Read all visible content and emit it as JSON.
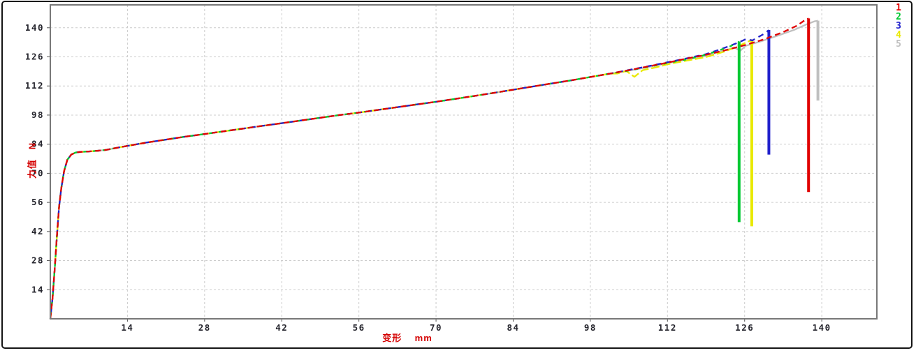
{
  "window": {
    "background": "#ffffff",
    "border_color": "#141414"
  },
  "chart_data": {
    "type": "line",
    "title": "",
    "xlabel": "变形    mm",
    "ylabel": "力值   N",
    "xlim": [
      0,
      150
    ],
    "ylim": [
      0,
      151
    ],
    "xticks": [
      14,
      28,
      42,
      56,
      70,
      84,
      98,
      112,
      126,
      140
    ],
    "yticks": [
      14,
      28,
      42,
      56,
      70,
      84,
      98,
      112,
      126,
      140
    ],
    "grid": "dashed",
    "legend_position": "outside-top-right",
    "colors": {
      "grid": "#cccccc",
      "plot_border": "#787878",
      "tick": "#555555",
      "tick_label": "#26262e",
      "axis_label": "#d40000",
      "plot_background": "#ffffff"
    },
    "legend": [
      {
        "label": "1",
        "color": "#e00000"
      },
      {
        "label": "2",
        "color": "#00c832"
      },
      {
        "label": "3",
        "color": "#2020cc"
      },
      {
        "label": "4",
        "color": "#e9e900"
      },
      {
        "label": "5",
        "color": "#bfbfbf"
      }
    ],
    "common_curve": [
      [
        0,
        0
      ],
      [
        0.4,
        10
      ],
      [
        0.8,
        24
      ],
      [
        1.2,
        40
      ],
      [
        1.6,
        54
      ],
      [
        2,
        63
      ],
      [
        2.5,
        71
      ],
      [
        3.1,
        76.5
      ],
      [
        3.8,
        79
      ],
      [
        4.6,
        80
      ],
      [
        5.5,
        80.3
      ],
      [
        7,
        80.5
      ],
      [
        8.5,
        80.8
      ],
      [
        10,
        81.2
      ],
      [
        12,
        82.2
      ],
      [
        14,
        83.2
      ],
      [
        17.5,
        84.8
      ],
      [
        21,
        86.2
      ],
      [
        24.5,
        87.6
      ],
      [
        28,
        88.9
      ],
      [
        31.5,
        90.2
      ],
      [
        35,
        91.5
      ],
      [
        38.5,
        92.8
      ],
      [
        42,
        94.1
      ],
      [
        45.5,
        95.4
      ],
      [
        49,
        96.7
      ],
      [
        52.5,
        98
      ],
      [
        56,
        99.2
      ],
      [
        59.5,
        100.5
      ],
      [
        63,
        101.8
      ],
      [
        66.5,
        103.1
      ],
      [
        70,
        104.4
      ],
      [
        73.5,
        105.8
      ],
      [
        77,
        107.2
      ],
      [
        80.5,
        108.7
      ],
      [
        84,
        110.2
      ],
      [
        87.5,
        111.7
      ],
      [
        91,
        113.2
      ],
      [
        94.5,
        114.7
      ],
      [
        98,
        116.3
      ],
      [
        101.5,
        117.9
      ]
    ],
    "series": [
      {
        "name": "1",
        "color": "#e00000",
        "dash": "8 5",
        "tail": [
          [
            105,
            119.6
          ],
          [
            108.5,
            121.4
          ],
          [
            112,
            123.2
          ],
          [
            115.5,
            125.2
          ],
          [
            119,
            127
          ],
          [
            122.5,
            129.2
          ],
          [
            126,
            131.6
          ],
          [
            129.5,
            134.4
          ],
          [
            133,
            137.9
          ],
          [
            135.5,
            141
          ],
          [
            137,
            143.8
          ],
          [
            137.6,
            144.5
          ]
        ],
        "drop_to": 61
      },
      {
        "name": "2",
        "color": "#00c832",
        "dash": "5 9",
        "tail": [
          [
            105,
            119.4
          ],
          [
            108.5,
            121.2
          ],
          [
            112,
            123
          ],
          [
            115.5,
            124.8
          ],
          [
            118,
            126.3
          ],
          [
            121,
            128.8
          ],
          [
            123.5,
            131.2
          ],
          [
            125,
            133.4
          ]
        ],
        "drop_to": 46.5
      },
      {
        "name": "3",
        "color": "#2020cc",
        "dash": "8 6",
        "tail": [
          [
            105,
            119.7
          ],
          [
            108.5,
            121.5
          ],
          [
            112,
            123.4
          ],
          [
            115.5,
            125.3
          ],
          [
            119,
            127.3
          ],
          [
            122,
            130
          ],
          [
            124.5,
            132.5
          ],
          [
            126.3,
            134.6
          ],
          [
            127.4,
            133.9
          ],
          [
            128.3,
            135.3
          ],
          [
            129.5,
            137
          ],
          [
            130.4,
            138.9
          ]
        ],
        "drop_to": 79
      },
      {
        "name": "4",
        "color": "#e9e900",
        "dash": "12 4",
        "tail": [
          [
            103,
            118
          ],
          [
            104.5,
            119.2
          ],
          [
            106,
            116.4
          ],
          [
            107.5,
            119.6
          ],
          [
            110,
            121
          ],
          [
            112,
            122.4
          ],
          [
            115.5,
            124.2
          ],
          [
            119,
            125.9
          ],
          [
            122.5,
            128.7
          ],
          [
            125,
            131.3
          ],
          [
            127.3,
            134.2
          ]
        ],
        "drop_to": 44.5
      },
      {
        "name": "5",
        "color": "#bfbfbf",
        "dash": null,
        "tail": [
          [
            105,
            119.4
          ],
          [
            108.5,
            121.1
          ],
          [
            112,
            122.9
          ],
          [
            115.5,
            124.8
          ],
          [
            119,
            126.6
          ],
          [
            122,
            128.9
          ],
          [
            124.2,
            130.4
          ],
          [
            125.2,
            128.9
          ],
          [
            126.2,
            131.3
          ],
          [
            129,
            133.5
          ],
          [
            132,
            136.2
          ],
          [
            135,
            139
          ],
          [
            137.2,
            141.6
          ],
          [
            138.6,
            143
          ],
          [
            139.3,
            143.4
          ]
        ],
        "drop_to": 105
      }
    ]
  }
}
